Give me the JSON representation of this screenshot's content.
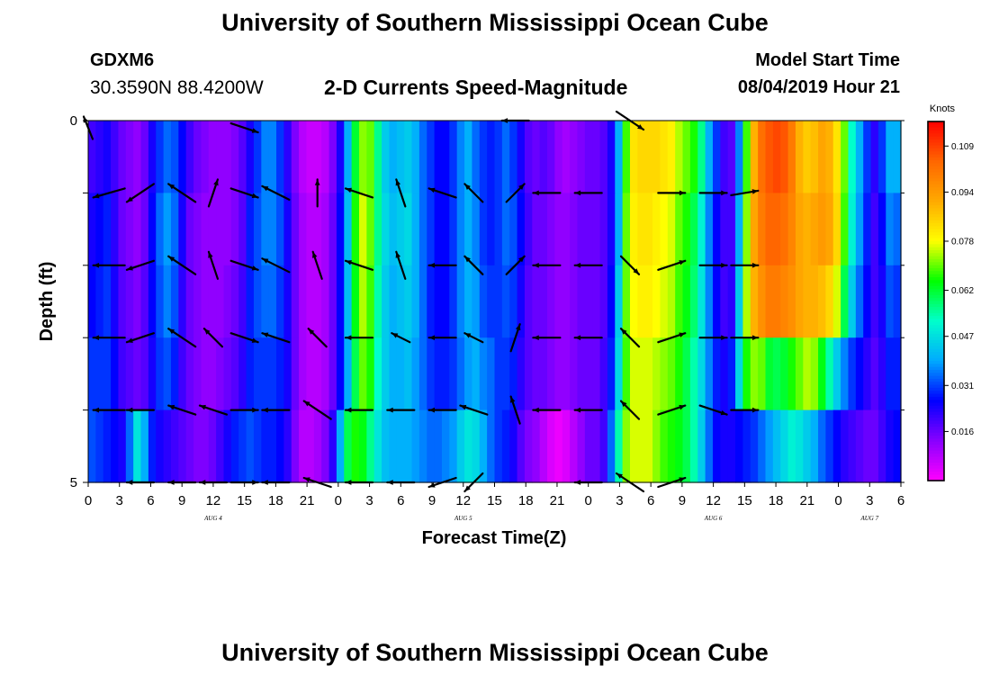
{
  "header": {
    "title": "University of Southern Mississippi Ocean Cube",
    "station_id": "GDXM6",
    "coordinates": "30.3590N 88.4200W",
    "plot_title": "2-D Currents Speed-Magnitude",
    "model_start_label": "Model Start Time",
    "model_start_value": "08/04/2019 Hour 21"
  },
  "footer": {
    "title": "University of Southern Mississippi Ocean Cube"
  },
  "chart_data": {
    "type": "heatmap",
    "title": "2-D Currents Speed-Magnitude",
    "xlabel": "Forecast Time(Z)",
    "ylabel": "Depth (ft)",
    "x_tick_labels": [
      "0",
      "3",
      "6",
      "9",
      "12",
      "15",
      "18",
      "21",
      "0",
      "3",
      "6",
      "9",
      "12",
      "15",
      "18",
      "21",
      "0",
      "3",
      "6",
      "9",
      "12",
      "15",
      "18",
      "21",
      "0",
      "3",
      "6"
    ],
    "date_labels": [
      {
        "label": "AUG 4",
        "tick_index": 4
      },
      {
        "label": "AUG 5",
        "tick_index": 12
      },
      {
        "label": "AUG 6",
        "tick_index": 20
      },
      {
        "label": "AUG 7",
        "tick_index": 25
      }
    ],
    "y_tick_labels": [
      "0",
      "5"
    ],
    "ylim": [
      0,
      5
    ],
    "hours_per_column": 1,
    "depth_rows": 5,
    "colorbar": {
      "unit": "Knots",
      "tick_values": [
        "0.109",
        "0.094",
        "0.078",
        "0.062",
        "0.047",
        "0.031",
        "0.016"
      ],
      "range": [
        0.0,
        0.117
      ],
      "colors": [
        "#ff00ff",
        "#8800ff",
        "#0000ff",
        "#00aaff",
        "#00ffcc",
        "#00ff00",
        "#ffff00",
        "#ffaa00",
        "#ff6600",
        "#ff0000"
      ]
    },
    "speed_rows": [
      [
        0.02,
        0.022,
        0.024,
        0.02,
        0.016,
        0.014,
        0.012,
        0.016,
        0.024,
        0.03,
        0.034,
        0.032,
        0.026,
        0.02,
        0.016,
        0.014,
        0.012,
        0.012,
        0.012,
        0.014,
        0.018,
        0.024,
        0.03,
        0.036,
        0.036,
        0.03,
        0.022,
        0.014,
        0.008,
        0.006,
        0.006,
        0.008,
        0.014,
        0.024,
        0.04,
        0.062,
        0.072,
        0.07,
        0.056,
        0.044,
        0.04,
        0.042,
        0.044,
        0.04,
        0.034,
        0.03,
        0.026,
        0.026,
        0.03,
        0.036,
        0.04,
        0.034,
        0.03,
        0.028,
        0.03,
        0.034,
        0.03,
        0.024,
        0.018,
        0.016,
        0.018,
        0.016,
        0.012,
        0.01,
        0.012,
        0.014,
        0.016,
        0.016,
        0.018,
        0.024,
        0.04,
        0.068,
        0.082,
        0.084,
        0.084,
        0.084,
        0.082,
        0.08,
        0.074,
        0.07,
        0.066,
        0.056,
        0.04,
        0.03,
        0.02,
        0.018,
        0.036,
        0.068,
        0.09,
        0.102,
        0.106,
        0.108,
        0.106,
        0.1,
        0.09,
        0.086,
        0.088,
        0.092,
        0.09,
        0.082,
        0.07,
        0.052,
        0.04,
        0.03,
        0.022,
        0.03,
        0.04,
        0.04
      ],
      [
        0.024,
        0.026,
        0.028,
        0.022,
        0.016,
        0.014,
        0.012,
        0.016,
        0.026,
        0.034,
        0.038,
        0.034,
        0.024,
        0.016,
        0.014,
        0.012,
        0.012,
        0.012,
        0.012,
        0.014,
        0.018,
        0.028,
        0.032,
        0.036,
        0.036,
        0.032,
        0.024,
        0.016,
        0.01,
        0.008,
        0.008,
        0.01,
        0.016,
        0.026,
        0.042,
        0.066,
        0.076,
        0.07,
        0.056,
        0.046,
        0.042,
        0.044,
        0.046,
        0.04,
        0.034,
        0.03,
        0.026,
        0.026,
        0.03,
        0.036,
        0.04,
        0.036,
        0.03,
        0.028,
        0.03,
        0.034,
        0.032,
        0.026,
        0.02,
        0.016,
        0.016,
        0.014,
        0.012,
        0.012,
        0.014,
        0.016,
        0.016,
        0.016,
        0.018,
        0.024,
        0.04,
        0.07,
        0.08,
        0.082,
        0.082,
        0.08,
        0.078,
        0.076,
        0.07,
        0.066,
        0.06,
        0.05,
        0.036,
        0.026,
        0.02,
        0.02,
        0.04,
        0.072,
        0.092,
        0.1,
        0.104,
        0.104,
        0.102,
        0.098,
        0.092,
        0.09,
        0.092,
        0.094,
        0.092,
        0.084,
        0.068,
        0.05,
        0.038,
        0.028,
        0.02,
        0.026,
        0.036,
        0.034
      ],
      [
        0.026,
        0.028,
        0.03,
        0.024,
        0.018,
        0.016,
        0.014,
        0.018,
        0.026,
        0.032,
        0.036,
        0.032,
        0.022,
        0.016,
        0.014,
        0.012,
        0.012,
        0.012,
        0.014,
        0.016,
        0.02,
        0.028,
        0.032,
        0.034,
        0.034,
        0.03,
        0.024,
        0.016,
        0.01,
        0.008,
        0.008,
        0.01,
        0.016,
        0.026,
        0.042,
        0.064,
        0.074,
        0.068,
        0.054,
        0.044,
        0.04,
        0.042,
        0.044,
        0.04,
        0.034,
        0.028,
        0.026,
        0.026,
        0.03,
        0.036,
        0.04,
        0.038,
        0.032,
        0.03,
        0.03,
        0.032,
        0.03,
        0.024,
        0.018,
        0.016,
        0.016,
        0.014,
        0.012,
        0.012,
        0.014,
        0.016,
        0.016,
        0.016,
        0.018,
        0.026,
        0.044,
        0.07,
        0.078,
        0.08,
        0.08,
        0.078,
        0.076,
        0.074,
        0.068,
        0.064,
        0.058,
        0.048,
        0.036,
        0.026,
        0.02,
        0.022,
        0.044,
        0.074,
        0.09,
        0.096,
        0.1,
        0.1,
        0.098,
        0.096,
        0.092,
        0.09,
        0.09,
        0.088,
        0.084,
        0.076,
        0.06,
        0.044,
        0.034,
        0.026,
        0.02,
        0.024,
        0.032,
        0.03
      ],
      [
        0.03,
        0.03,
        0.03,
        0.026,
        0.02,
        0.018,
        0.016,
        0.018,
        0.024,
        0.03,
        0.032,
        0.028,
        0.02,
        0.016,
        0.014,
        0.012,
        0.012,
        0.014,
        0.016,
        0.018,
        0.022,
        0.028,
        0.03,
        0.03,
        0.03,
        0.028,
        0.024,
        0.016,
        0.01,
        0.008,
        0.008,
        0.01,
        0.016,
        0.026,
        0.04,
        0.06,
        0.07,
        0.066,
        0.052,
        0.044,
        0.04,
        0.04,
        0.042,
        0.038,
        0.034,
        0.03,
        0.028,
        0.028,
        0.03,
        0.034,
        0.038,
        0.04,
        0.036,
        0.034,
        0.03,
        0.03,
        0.028,
        0.022,
        0.018,
        0.016,
        0.016,
        0.014,
        0.012,
        0.012,
        0.014,
        0.016,
        0.016,
        0.016,
        0.02,
        0.028,
        0.046,
        0.068,
        0.076,
        0.076,
        0.076,
        0.074,
        0.072,
        0.07,
        0.066,
        0.06,
        0.054,
        0.046,
        0.036,
        0.028,
        0.024,
        0.028,
        0.046,
        0.066,
        0.072,
        0.07,
        0.062,
        0.06,
        0.062,
        0.066,
        0.07,
        0.074,
        0.072,
        0.064,
        0.054,
        0.044,
        0.036,
        0.03,
        0.026,
        0.022,
        0.018,
        0.022,
        0.028,
        0.028
      ],
      [
        0.032,
        0.03,
        0.028,
        0.026,
        0.024,
        0.034,
        0.048,
        0.04,
        0.028,
        0.024,
        0.022,
        0.02,
        0.018,
        0.016,
        0.014,
        0.014,
        0.016,
        0.02,
        0.024,
        0.028,
        0.03,
        0.032,
        0.03,
        0.028,
        0.028,
        0.026,
        0.022,
        0.014,
        0.008,
        0.008,
        0.01,
        0.014,
        0.022,
        0.04,
        0.06,
        0.066,
        0.064,
        0.056,
        0.048,
        0.042,
        0.04,
        0.04,
        0.04,
        0.038,
        0.036,
        0.034,
        0.034,
        0.036,
        0.038,
        0.044,
        0.048,
        0.046,
        0.04,
        0.034,
        0.03,
        0.028,
        0.024,
        0.018,
        0.014,
        0.012,
        0.008,
        0.004,
        0.002,
        0.004,
        0.008,
        0.012,
        0.016,
        0.016,
        0.02,
        0.034,
        0.054,
        0.072,
        0.076,
        0.076,
        0.076,
        0.072,
        0.068,
        0.066,
        0.064,
        0.06,
        0.054,
        0.044,
        0.034,
        0.026,
        0.024,
        0.024,
        0.026,
        0.028,
        0.03,
        0.034,
        0.038,
        0.042,
        0.046,
        0.05,
        0.048,
        0.044,
        0.04,
        0.034,
        0.03,
        0.026,
        0.022,
        0.02,
        0.018,
        0.016,
        0.016,
        0.02,
        0.024,
        0.026
      ]
    ],
    "vectors": [
      {
        "hour": 0,
        "depth": 0.1,
        "dx": -1,
        "dy": -2.5
      },
      {
        "hour": 2,
        "depth": 1,
        "dx": -3.5,
        "dy": 1
      },
      {
        "hour": 2,
        "depth": 2,
        "dx": -3.5,
        "dy": 0
      },
      {
        "hour": 2,
        "depth": 3,
        "dx": -3.5,
        "dy": 0
      },
      {
        "hour": 2,
        "depth": 4,
        "dx": -3.5,
        "dy": 0
      },
      {
        "hour": 5,
        "depth": 1,
        "dx": -3,
        "dy": 2
      },
      {
        "hour": 5,
        "depth": 2,
        "dx": -3,
        "dy": 1
      },
      {
        "hour": 5,
        "depth": 3,
        "dx": -3,
        "dy": 1
      },
      {
        "hour": 5,
        "depth": 4,
        "dx": -3,
        "dy": 0
      },
      {
        "hour": 5,
        "depth": 5,
        "dx": -3,
        "dy": 0
      },
      {
        "hour": 9,
        "depth": 1,
        "dx": -3,
        "dy": -2
      },
      {
        "hour": 9,
        "depth": 2,
        "dx": -3,
        "dy": -2
      },
      {
        "hour": 9,
        "depth": 3,
        "dx": -3,
        "dy": -2
      },
      {
        "hour": 9,
        "depth": 4,
        "dx": -3,
        "dy": -1
      },
      {
        "hour": 9,
        "depth": 5,
        "dx": -3,
        "dy": 0
      },
      {
        "hour": 12,
        "depth": 1,
        "dx": 1,
        "dy": -3
      },
      {
        "hour": 12,
        "depth": 2,
        "dx": -1,
        "dy": -3
      },
      {
        "hour": 12,
        "depth": 3,
        "dx": -2,
        "dy": -2
      },
      {
        "hour": 12,
        "depth": 4,
        "dx": -3,
        "dy": -1
      },
      {
        "hour": 12,
        "depth": 5,
        "dx": -3,
        "dy": 0
      },
      {
        "hour": 15,
        "depth": 0.1,
        "dx": 3,
        "dy": 1
      },
      {
        "hour": 15,
        "depth": 1,
        "dx": 3,
        "dy": 1
      },
      {
        "hour": 15,
        "depth": 2,
        "dx": 3,
        "dy": 1
      },
      {
        "hour": 15,
        "depth": 3,
        "dx": 3,
        "dy": 1
      },
      {
        "hour": 15,
        "depth": 4,
        "dx": 3,
        "dy": 0
      },
      {
        "hour": 15,
        "depth": 5,
        "dx": 3,
        "dy": 0
      },
      {
        "hour": 18,
        "depth": 1,
        "dx": -3,
        "dy": -1.5
      },
      {
        "hour": 18,
        "depth": 2,
        "dx": -3,
        "dy": -1.5
      },
      {
        "hour": 18,
        "depth": 3,
        "dx": -3,
        "dy": -1
      },
      {
        "hour": 18,
        "depth": 4,
        "dx": -3,
        "dy": 0
      },
      {
        "hour": 18,
        "depth": 5,
        "dx": -3,
        "dy": 0
      },
      {
        "hour": 22,
        "depth": 1,
        "dx": 0,
        "dy": -3
      },
      {
        "hour": 22,
        "depth": 2,
        "dx": -1,
        "dy": -3
      },
      {
        "hour": 22,
        "depth": 3,
        "dx": -2,
        "dy": -2
      },
      {
        "hour": 22,
        "depth": 4,
        "dx": -3,
        "dy": -2
      },
      {
        "hour": 22,
        "depth": 5,
        "dx": -3,
        "dy": -1
      },
      {
        "hour": 26,
        "depth": 1,
        "dx": -3,
        "dy": -1
      },
      {
        "hour": 26,
        "depth": 2,
        "dx": -3,
        "dy": -1
      },
      {
        "hour": 26,
        "depth": 3,
        "dx": -3,
        "dy": 0
      },
      {
        "hour": 26,
        "depth": 4,
        "dx": -3,
        "dy": 0
      },
      {
        "hour": 26,
        "depth": 5,
        "dx": -3,
        "dy": 0
      },
      {
        "hour": 30,
        "depth": 1,
        "dx": -1,
        "dy": -3
      },
      {
        "hour": 30,
        "depth": 2,
        "dx": -1,
        "dy": -3
      },
      {
        "hour": 30,
        "depth": 3,
        "dx": -2,
        "dy": -1
      },
      {
        "hour": 30,
        "depth": 4,
        "dx": -3,
        "dy": 0
      },
      {
        "hour": 30,
        "depth": 5,
        "dx": -3,
        "dy": 0
      },
      {
        "hour": 34,
        "depth": 1,
        "dx": -3,
        "dy": -1
      },
      {
        "hour": 34,
        "depth": 2,
        "dx": -3,
        "dy": 0
      },
      {
        "hour": 34,
        "depth": 3,
        "dx": -3,
        "dy": 0
      },
      {
        "hour": 34,
        "depth": 4,
        "dx": -3,
        "dy": 0
      },
      {
        "hour": 34,
        "depth": 5,
        "dx": -3,
        "dy": 1
      },
      {
        "hour": 37,
        "depth": 1,
        "dx": -2,
        "dy": -2
      },
      {
        "hour": 37,
        "depth": 2,
        "dx": -2,
        "dy": -2
      },
      {
        "hour": 37,
        "depth": 3,
        "dx": -2,
        "dy": -1
      },
      {
        "hour": 37,
        "depth": 4,
        "dx": -3,
        "dy": -1
      },
      {
        "hour": 37,
        "depth": 5,
        "dx": -2,
        "dy": 2
      },
      {
        "hour": 41,
        "depth": 0,
        "dx": -3,
        "dy": 0
      },
      {
        "hour": 41,
        "depth": 1,
        "dx": 2,
        "dy": -2
      },
      {
        "hour": 41,
        "depth": 2,
        "dx": 2,
        "dy": -2
      },
      {
        "hour": 41,
        "depth": 3,
        "dx": 1,
        "dy": -3
      },
      {
        "hour": 41,
        "depth": 4,
        "dx": -1,
        "dy": -3
      },
      {
        "hour": 44,
        "depth": 1,
        "dx": -3,
        "dy": 0
      },
      {
        "hour": 44,
        "depth": 2,
        "dx": -3,
        "dy": 0
      },
      {
        "hour": 44,
        "depth": 3,
        "dx": -3,
        "dy": 0
      },
      {
        "hour": 44,
        "depth": 4,
        "dx": -3,
        "dy": 0
      },
      {
        "hour": 48,
        "depth": 1,
        "dx": -3,
        "dy": 0
      },
      {
        "hour": 48,
        "depth": 2,
        "dx": -3,
        "dy": 0
      },
      {
        "hour": 48,
        "depth": 3,
        "dx": -3,
        "dy": 0
      },
      {
        "hour": 48,
        "depth": 4,
        "dx": -3,
        "dy": 0
      },
      {
        "hour": 48,
        "depth": 5,
        "dx": -3,
        "dy": 0
      },
      {
        "hour": 52,
        "depth": 0,
        "dx": 3,
        "dy": 2
      },
      {
        "hour": 52,
        "depth": 2,
        "dx": 2,
        "dy": 2
      },
      {
        "hour": 52,
        "depth": 3,
        "dx": -2,
        "dy": -2
      },
      {
        "hour": 52,
        "depth": 4,
        "dx": -2,
        "dy": -2
      },
      {
        "hour": 52,
        "depth": 5,
        "dx": -3,
        "dy": -2
      },
      {
        "hour": 56,
        "depth": 1,
        "dx": 3,
        "dy": 0
      },
      {
        "hour": 56,
        "depth": 2,
        "dx": 3,
        "dy": -1
      },
      {
        "hour": 56,
        "depth": 3,
        "dx": 3,
        "dy": -1
      },
      {
        "hour": 56,
        "depth": 4,
        "dx": 3,
        "dy": -1
      },
      {
        "hour": 56,
        "depth": 5,
        "dx": 3,
        "dy": -1
      },
      {
        "hour": 60,
        "depth": 1,
        "dx": 3,
        "dy": 0
      },
      {
        "hour": 60,
        "depth": 2,
        "dx": 3,
        "dy": 0
      },
      {
        "hour": 60,
        "depth": 3,
        "dx": 3,
        "dy": 0
      },
      {
        "hour": 60,
        "depth": 4,
        "dx": 3,
        "dy": 1
      },
      {
        "hour": 63,
        "depth": 1,
        "dx": 3,
        "dy": -0.5
      },
      {
        "hour": 63,
        "depth": 2,
        "dx": 3,
        "dy": 0
      },
      {
        "hour": 63,
        "depth": 3,
        "dx": 3,
        "dy": 0
      },
      {
        "hour": 63,
        "depth": 4,
        "dx": 3,
        "dy": 0
      }
    ]
  }
}
